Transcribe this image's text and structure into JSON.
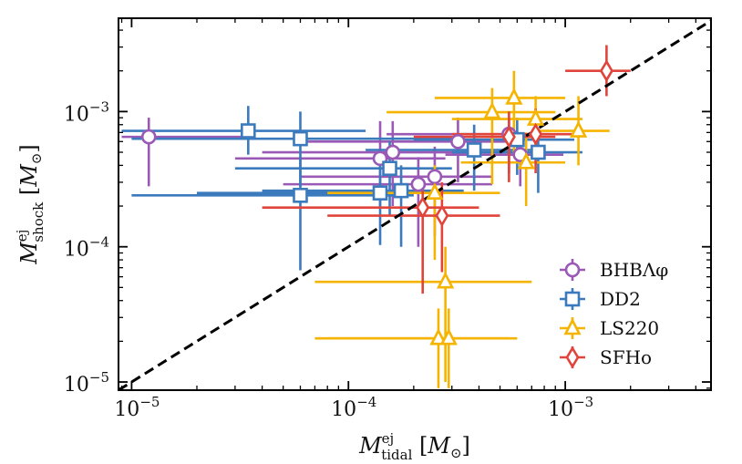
{
  "chart_data": {
    "type": "scatter",
    "x_scale": "log",
    "y_scale": "log",
    "xlim": [
      8.7e-06,
      0.0047
    ],
    "ylim": [
      8.7e-06,
      0.0049
    ],
    "xlabel": "M^ej_tidal [M_⊙]",
    "ylabel": "M^ej_shock [M_⊙]",
    "x_ticks": [
      {
        "value": 1e-05,
        "base": "10",
        "exp": "−5"
      },
      {
        "value": 0.0001,
        "base": "10",
        "exp": "−4"
      },
      {
        "value": 0.001,
        "base": "10",
        "exp": "−3"
      }
    ],
    "y_ticks": [
      {
        "value": 1e-05,
        "base": "10",
        "exp": "−5"
      },
      {
        "value": 0.0001,
        "base": "10",
        "exp": "−4"
      },
      {
        "value": 0.001,
        "base": "10",
        "exp": "−3"
      }
    ],
    "reference_line": {
      "style": "dashed",
      "color": "#000000",
      "relation": "y = x"
    },
    "legend_position": "lower right",
    "series": [
      {
        "name": "BHBΛφ",
        "marker": "circle",
        "color": "#9b59b6",
        "points": [
          {
            "x": 1.2e-05,
            "y": 0.00065,
            "xerr": [
              3e-06,
              2.5e-05
            ],
            "yerr": [
              0.00037,
              0.00025
            ]
          },
          {
            "x": 0.00014,
            "y": 0.00045,
            "xerr": [
              0.00011,
              0.00014
            ],
            "yerr": [
              0.00025,
              0.0004
            ]
          },
          {
            "x": 0.00016,
            "y": 0.0005,
            "xerr": [
              0.00012,
              0.00025
            ],
            "yerr": [
              0.0003,
              0.00035
            ]
          },
          {
            "x": 0.00021,
            "y": 0.00029,
            "xerr": [
              0.00016,
              0.00025
            ],
            "yerr": [
              0.00019,
              0.00017
            ]
          },
          {
            "x": 0.00025,
            "y": 0.00033,
            "xerr": [
              0.00019,
              0.00021
            ],
            "yerr": [
              0.00021,
              0.00022
            ]
          },
          {
            "x": 0.00032,
            "y": 0.0006,
            "xerr": [
              0.00026,
              0.00028
            ],
            "yerr": [
              0.0003,
              0.0003
            ]
          },
          {
            "x": 0.00055,
            "y": 0.00068,
            "xerr": [
              0.0004,
              0.0003
            ],
            "yerr": [
              0.00033,
              0.00022
            ]
          },
          {
            "x": 0.00062,
            "y": 0.00048,
            "xerr": [
              0.00034,
              0.00036
            ],
            "yerr": [
              0.0002,
              0.0002
            ]
          }
        ]
      },
      {
        "name": "DD2",
        "marker": "square",
        "color": "#3a7abd",
        "points": [
          {
            "x": 3.45e-05,
            "y": 0.00072,
            "xerr": [
              2.55e-05,
              8.55e-05
            ],
            "yerr": [
              0.00024,
              0.00038
            ]
          },
          {
            "x": 6e-05,
            "y": 0.00063,
            "xerr": [
              5e-05,
              0.00024
            ],
            "yerr": [
              0.00035,
              0.00037
            ]
          },
          {
            "x": 6e-05,
            "y": 0.00024,
            "xerr": [
              5e-05,
              0.00014
            ],
            "yerr": [
              0.000173,
              0.00021
            ]
          },
          {
            "x": 0.00014,
            "y": 0.00025,
            "xerr": [
              0.00012,
              0.00016
            ],
            "yerr": [
              0.000147,
              0.00015
            ]
          },
          {
            "x": 0.000155,
            "y": 0.00038,
            "xerr": [
              0.000125,
              0.000145
            ],
            "yerr": [
              0.00021,
              0.00022
            ]
          },
          {
            "x": 0.000175,
            "y": 0.00026,
            "xerr": [
              0.000135,
              0.000165
            ],
            "yerr": [
              0.00016,
              0.00014
            ]
          },
          {
            "x": 0.00038,
            "y": 0.00052,
            "xerr": [
              0.00026,
              0.00032
            ],
            "yerr": [
              0.00026,
              0.00028
            ]
          },
          {
            "x": 0.0006,
            "y": 0.00062,
            "xerr": [
              0.0004,
              0.0005
            ],
            "yerr": [
              0.00028,
              0.00028
            ]
          },
          {
            "x": 0.00075,
            "y": 0.0005,
            "xerr": [
              0.00045,
              0.00045
            ],
            "yerr": [
              0.00025,
              0.00025
            ]
          }
        ]
      },
      {
        "name": "LS220",
        "marker": "triangle",
        "color": "#f5b400",
        "points": [
          {
            "x": 0.00028,
            "y": 5.5e-05,
            "xerr": [
              0.00021,
              0.00042
            ],
            "yerr": [
              4.5e-05,
              4.5e-05
            ]
          },
          {
            "x": 0.00026,
            "y": 2.1e-05,
            "xerr": [
              0.00019,
              0.00029
            ],
            "yerr": [
              1.2e-05,
              1.4e-05
            ]
          },
          {
            "x": 0.00029,
            "y": 2.1e-05,
            "xerr": [
              0.00021,
              0.00031
            ],
            "yerr": [
              1.2e-05,
              1.4e-05
            ]
          },
          {
            "x": 0.00025,
            "y": 0.00025,
            "xerr": [
              0.00017,
              0.00025
            ],
            "yerr": [
              0.00017,
              0.00015
            ]
          },
          {
            "x": 0.00046,
            "y": 0.00099,
            "xerr": [
              0.00031,
              0.00044
            ],
            "yerr": [
              0.0007,
              0.0005
            ]
          },
          {
            "x": 0.00058,
            "y": 0.00126,
            "xerr": [
              0.00033,
              0.00042
            ],
            "yerr": [
              0.00079,
              0.00074
            ]
          },
          {
            "x": 0.00066,
            "y": 0.00042,
            "xerr": [
              0.00033,
              0.00034
            ],
            "yerr": [
              0.00022,
              0.00028
            ]
          },
          {
            "x": 0.00073,
            "y": 0.00088,
            "xerr": [
              0.00043,
              0.00047
            ],
            "yerr": [
              0.00038,
              0.00042
            ]
          },
          {
            "x": 0.00115,
            "y": 0.00072,
            "xerr": [
              0.00045,
              0.00045
            ],
            "yerr": [
              0.00032,
              0.00058
            ]
          }
        ]
      },
      {
        "name": "SFHo",
        "marker": "diamond",
        "color": "#e0443a",
        "points": [
          {
            "x": 0.00022,
            "y": 0.000195,
            "xerr": [
              0.00018,
              0.00018
            ],
            "yerr": [
              0.00015,
              0.000105
            ]
          },
          {
            "x": 0.00027,
            "y": 0.00017,
            "xerr": [
              0.00019,
              0.00023
            ],
            "yerr": [
              0.000105,
              0.00013
            ]
          },
          {
            "x": 0.00055,
            "y": 0.00065,
            "xerr": [
              0.00035,
              0.00035
            ],
            "yerr": [
              0.00035,
              0.00035
            ]
          },
          {
            "x": 0.00073,
            "y": 0.00068,
            "xerr": [
              0.00043,
              0.00047
            ],
            "yerr": [
              0.00033,
              0.00037
            ]
          },
          {
            "x": 0.00155,
            "y": 0.002,
            "xerr": [
              0.00055,
              0.00045
            ],
            "yerr": [
              0.0007,
              0.0011
            ]
          }
        ]
      }
    ]
  }
}
